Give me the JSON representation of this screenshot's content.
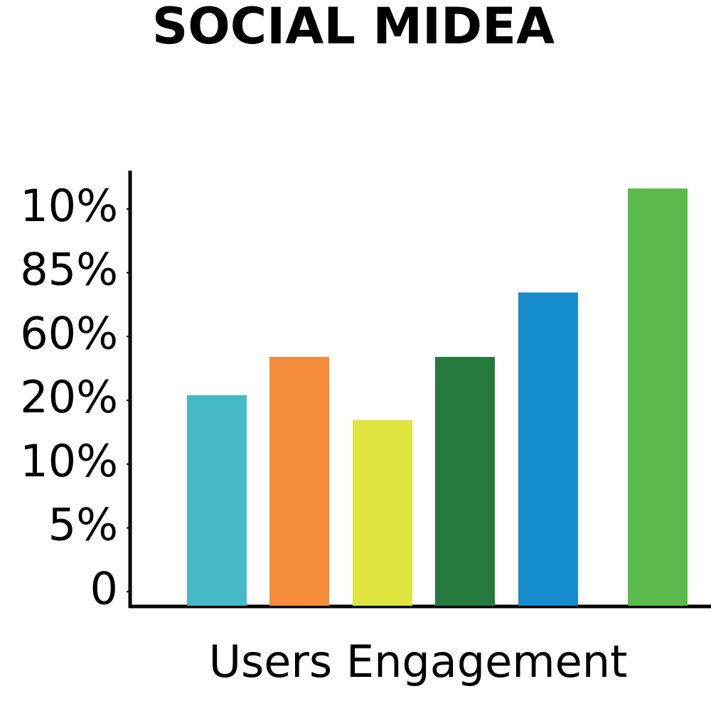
{
  "chart_data": {
    "type": "bar",
    "title": "SOCIAL MIDEA",
    "xlabel": "Users Engagement",
    "values": [
      3.08,
      3.68,
      2.69,
      3.68,
      4.69,
      6.32
    ],
    "colors": [
      "#45b9c5",
      "#f48c3c",
      "#dfe53f",
      "#267a3e",
      "#168ccc",
      "#5bbb4a"
    ],
    "ylim": [
      -0.22,
      6.6
    ],
    "yticks": [
      0,
      1,
      2,
      3,
      4,
      5,
      6
    ],
    "ytick_labels": [
      "0",
      "5%",
      "10%",
      "20%",
      "60%",
      "85%",
      "10%"
    ]
  }
}
